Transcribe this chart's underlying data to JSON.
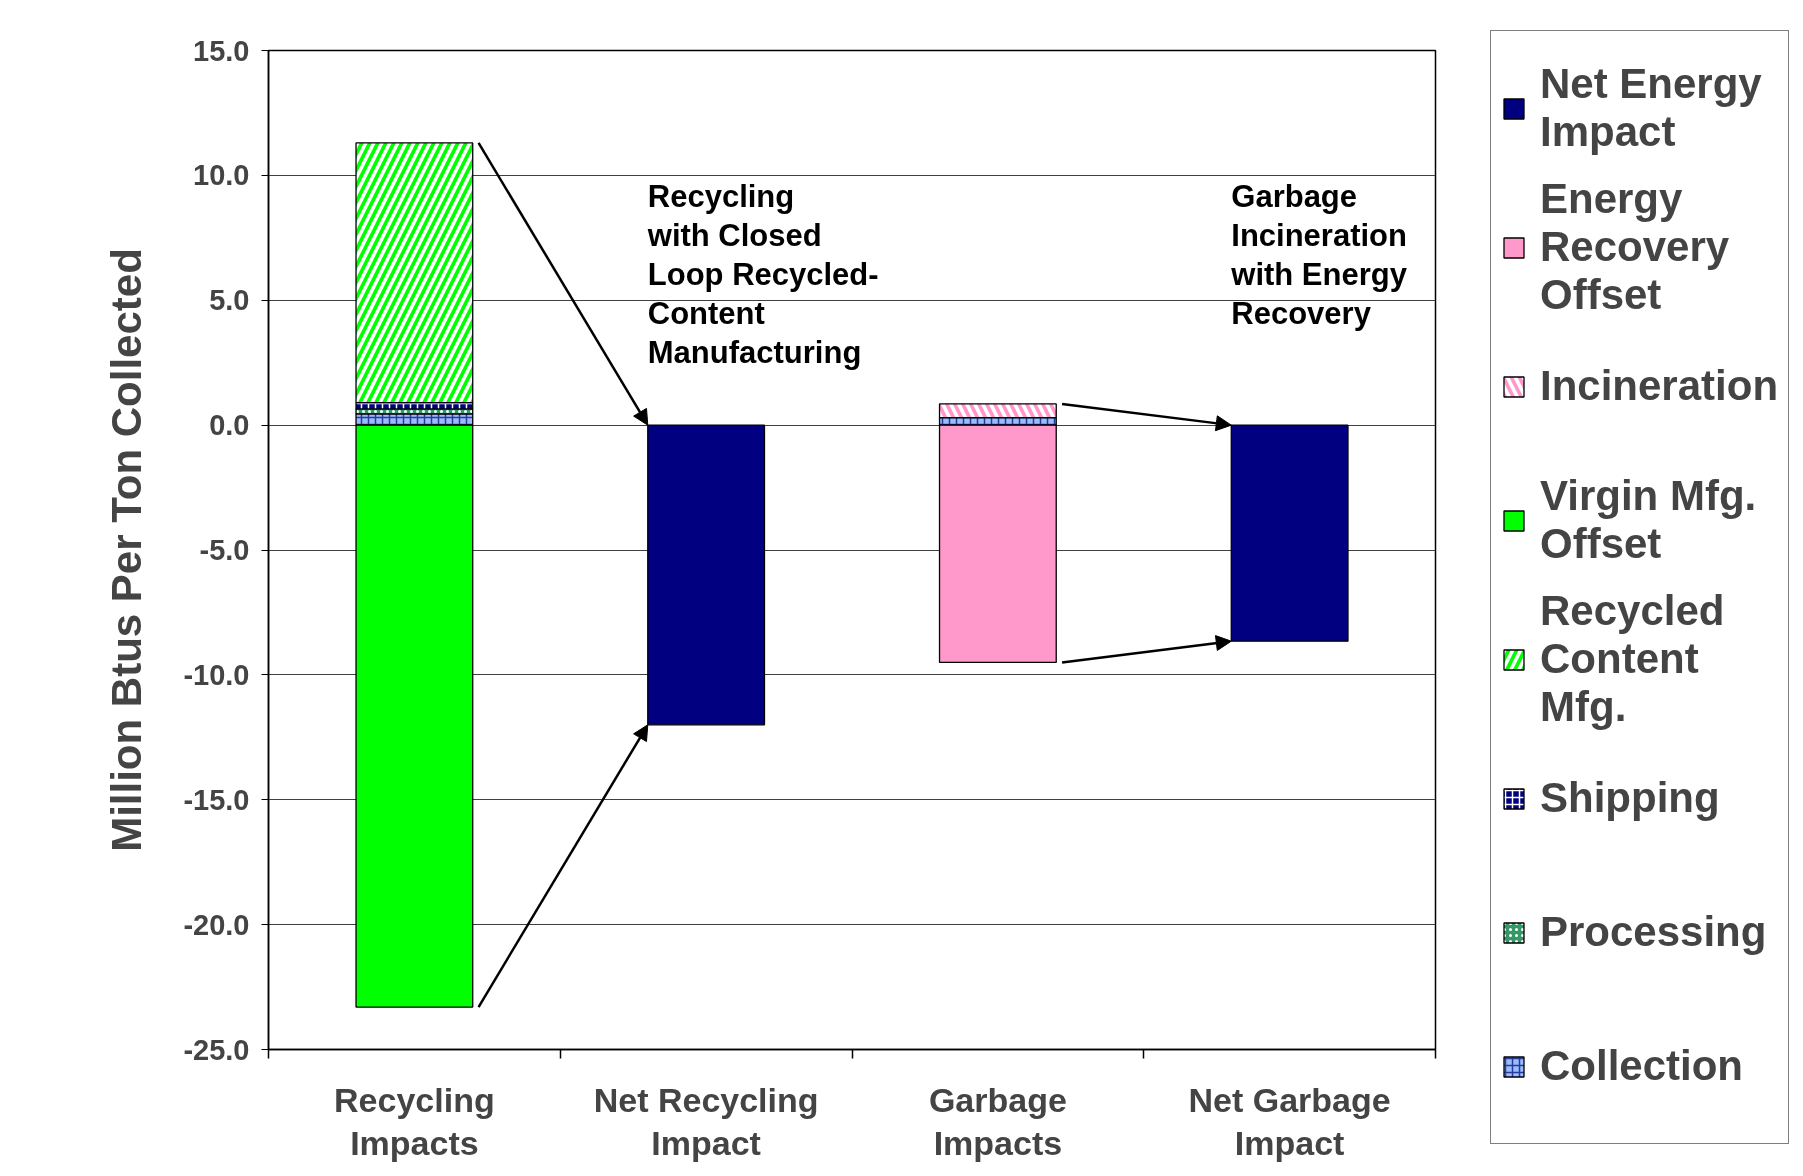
{
  "chart_data": {
    "type": "bar",
    "stacked": true,
    "categories": [
      "Recycling Impacts",
      "Net Recycling Impact",
      "Garbage Impacts",
      "Net Garbage Impact"
    ],
    "ylabel": "Million Btus Per Ton Collected",
    "ylim": [
      -25,
      15
    ],
    "yticks": [
      {
        "value": -25,
        "label": "-25.0"
      },
      {
        "value": -20,
        "label": "-20.0"
      },
      {
        "value": -15,
        "label": "-15.0"
      },
      {
        "value": -10,
        "label": "-10.0"
      },
      {
        "value": -5,
        "label": "-5.0"
      },
      {
        "value": 0,
        "label": "0.0"
      },
      {
        "value": 5,
        "label": "5.0"
      },
      {
        "value": 10,
        "label": "10.0"
      },
      {
        "value": 15,
        "label": "15.0"
      }
    ],
    "grid": "y",
    "legend": "right",
    "series": [
      {
        "name": "Collection",
        "color": "#99bbff",
        "values": [
          0.45,
          null,
          0.3,
          null
        ]
      },
      {
        "name": "Processing",
        "color": "#339966",
        "values": [
          0.2,
          null,
          null,
          null
        ]
      },
      {
        "name": "Shipping",
        "color": "#000080",
        "values": [
          0.25,
          null,
          null,
          null
        ]
      },
      {
        "name": "Recycled Content Mfg.",
        "color": "#00ff00",
        "values": [
          10.4,
          null,
          null,
          null
        ]
      },
      {
        "name": "Virgin Mfg. Offset",
        "color": "#00ff00",
        "values": [
          -23.3,
          null,
          null,
          null
        ]
      },
      {
        "name": "Incineration",
        "color": "#ff99cc",
        "values": [
          null,
          null,
          0.55,
          null
        ]
      },
      {
        "name": "Energy Recovery Offset",
        "color": "#ff99cc",
        "values": [
          null,
          null,
          -9.5,
          null
        ]
      },
      {
        "name": "Net Energy Impact",
        "color": "#000080",
        "values": [
          null,
          -12.0,
          null,
          -8.65
        ]
      }
    ],
    "annotations": [
      "Recycling\nwith Closed\nLoop Recycled-\nContent\nManufacturing",
      "Garbage\nIncineration\nwith Energy\nRecovery"
    ]
  }
}
